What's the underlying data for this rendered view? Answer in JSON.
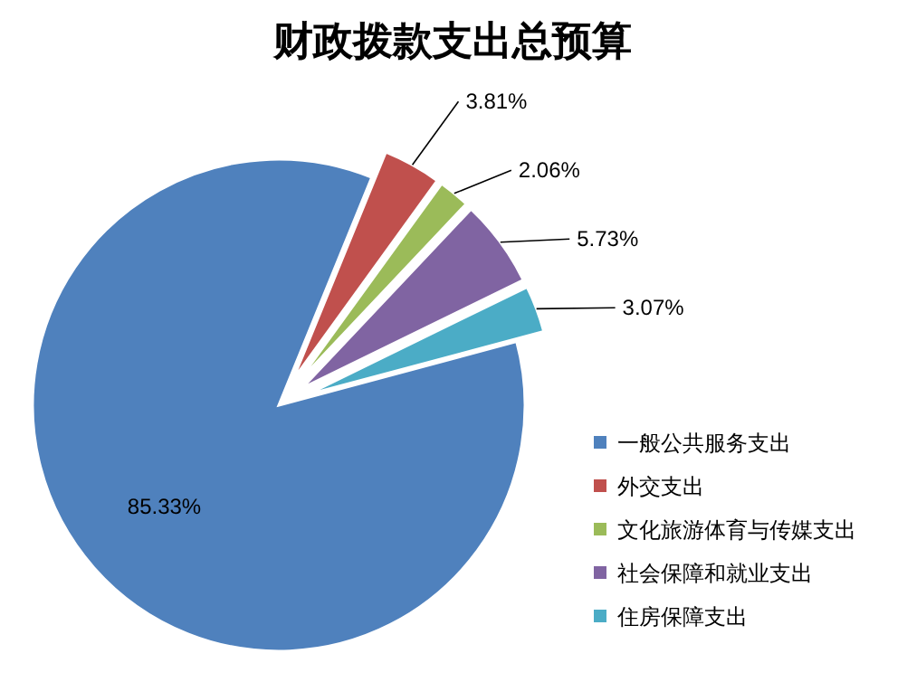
{
  "chart_data": {
    "type": "pie",
    "title": "财政拨款支出总预算",
    "categories": [
      "一般公共服务支出",
      "外交支出",
      "文化旅游体育与传媒支出",
      "社会保障和就业支出",
      "住房保障支出"
    ],
    "values": [
      85.33,
      3.81,
      2.06,
      5.73,
      3.07
    ],
    "value_labels": [
      "85.33%",
      "3.81%",
      "2.06%",
      "5.73%",
      "3.07%"
    ],
    "colors": [
      "#4f81bd",
      "#c0504d",
      "#9bbb59",
      "#8064a2",
      "#4bacc6"
    ],
    "legend": "right"
  }
}
